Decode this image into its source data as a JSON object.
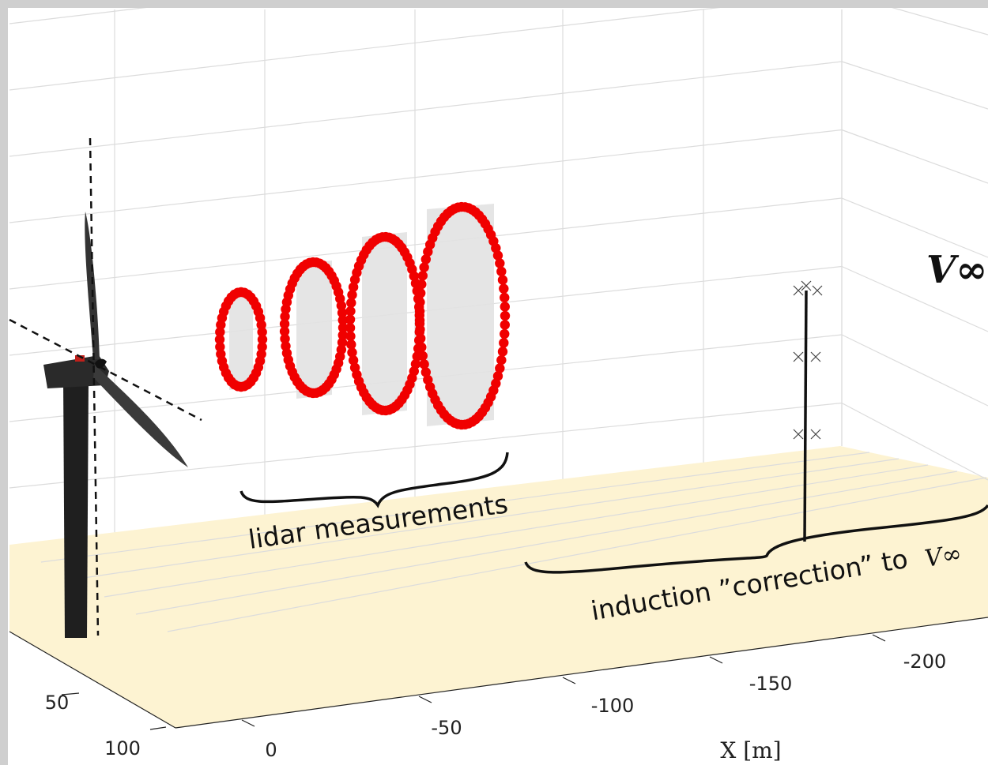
{
  "axes": {
    "x_label": "X [m]",
    "x_ticks": [
      "0",
      "-50",
      "-100",
      "-150",
      "-200"
    ],
    "y_ticks": [
      "50",
      "100"
    ]
  },
  "annotations": {
    "lidar": "lidar measurements",
    "induction": "induction ”correction” to",
    "induction_symbol": "V∞",
    "v_inf": "V∞"
  }
}
